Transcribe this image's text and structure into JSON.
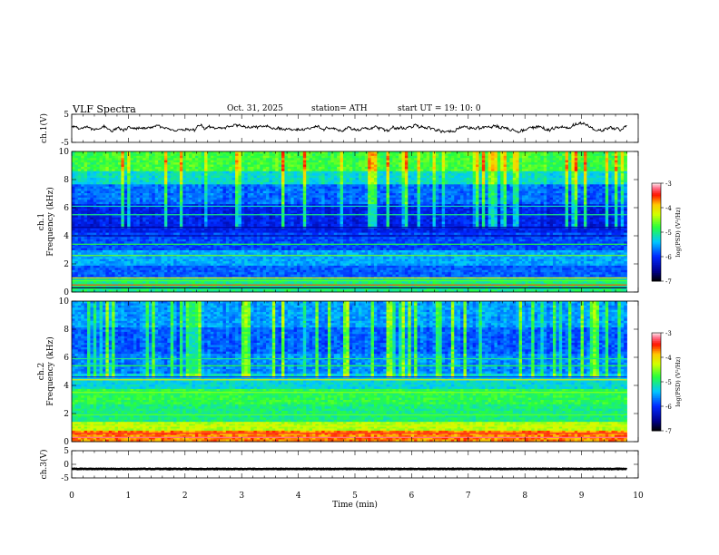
{
  "header": {
    "title": "VLF  Spectra",
    "date": "Oct. 31, 2025",
    "station": "station= ATH",
    "start": "start  UT  =   19: 10: 0"
  },
  "chart_data": [
    {
      "type": "line",
      "name": "ch1-waveform",
      "ylabel": "ch.1(V)",
      "ylim": [
        -5,
        5
      ],
      "ytick_labels": [
        "5",
        "-5"
      ],
      "xlim": [
        0,
        10
      ],
      "series": [
        {
          "name": "ch.1",
          "x_range": [
            0,
            9.8
          ],
          "mean": 0,
          "amplitude": 1.4
        }
      ]
    },
    {
      "type": "heatmap",
      "name": "ch1-spectrogram",
      "ylabel": "ch.1\nFrequency (kHz)",
      "ylim": [
        0,
        10
      ],
      "ytick_labels": [
        "0",
        "2",
        "4",
        "6",
        "8",
        "10"
      ],
      "xlim": [
        0,
        9.8
      ],
      "colorbar": {
        "label": "log(PSD) (V²/Hz)",
        "range": [
          -7,
          -3
        ],
        "tick_labels": [
          "-3",
          "-4",
          "-5",
          "-6",
          "-7"
        ]
      }
    },
    {
      "type": "heatmap",
      "name": "ch2-spectrogram",
      "ylabel": "ch.2\nFrequency (kHz)",
      "ylim": [
        0,
        10
      ],
      "ytick_labels": [
        "0",
        "2",
        "4",
        "6",
        "8",
        "10"
      ],
      "xlim": [
        0,
        9.8
      ],
      "colorbar": {
        "label": "log(PSD) (V²/Hz)",
        "range": [
          -7,
          -3
        ],
        "tick_labels": [
          "-3",
          "-4",
          "-5",
          "-6",
          "-7"
        ]
      }
    },
    {
      "type": "line",
      "name": "ch3-waveform",
      "ylabel": "ch.3(V)",
      "ylim": [
        -5,
        5
      ],
      "ytick_labels": [
        "5",
        "0",
        "-5"
      ],
      "xlim": [
        0,
        10
      ],
      "series": [
        {
          "name": "ch.3",
          "x_range": [
            0,
            9.8
          ],
          "mean": -1.7,
          "amplitude": 0.2
        }
      ]
    }
  ],
  "xaxis": {
    "label": "Time  (min)",
    "range": [
      0,
      10
    ],
    "tick_labels": [
      "0",
      "1",
      "2",
      "3",
      "4",
      "5",
      "6",
      "7",
      "8",
      "9",
      "10"
    ]
  }
}
